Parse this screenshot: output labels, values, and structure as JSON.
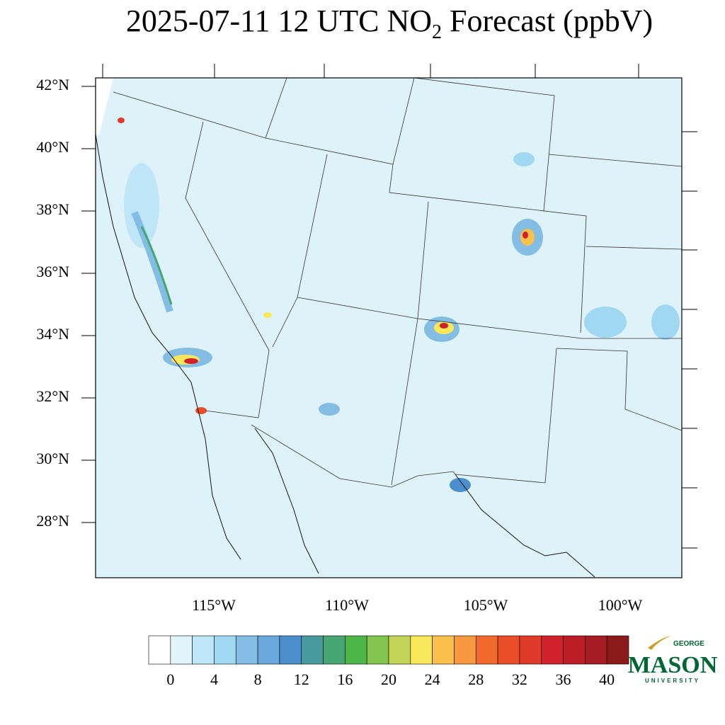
{
  "header": {
    "title_main": "2025-07-11 12 UTC NO",
    "title_sub": "2",
    "title_rest": " Forecast (ppbV)"
  },
  "map": {
    "lat_labels": [
      "42°N",
      "40°N",
      "38°N",
      "36°N",
      "34°N",
      "32°N",
      "30°N",
      "28°N"
    ],
    "lon_labels": [
      "115°W",
      "110°W",
      "105°W",
      "100°W"
    ]
  },
  "colorbar": {
    "colors": [
      "#ffffff",
      "#e1f3fb",
      "#bfe6f7",
      "#a0d8f2",
      "#84bde3",
      "#6aa8dc",
      "#4a8ecb",
      "#479a9e",
      "#46a673",
      "#4cb648",
      "#83c44f",
      "#c2d558",
      "#f8e85a",
      "#f9c04c",
      "#f8983f",
      "#f26a2e",
      "#e94e27",
      "#e03b2a",
      "#d1222b",
      "#bb1e26",
      "#a51c24",
      "#8b1a1b"
    ],
    "ticks": [
      0,
      4,
      8,
      12,
      16,
      20,
      24,
      28,
      32,
      36,
      40
    ]
  },
  "logo": {
    "top": "GEORGE",
    "main": "MASON",
    "bottom": "UNIVERSITY"
  }
}
